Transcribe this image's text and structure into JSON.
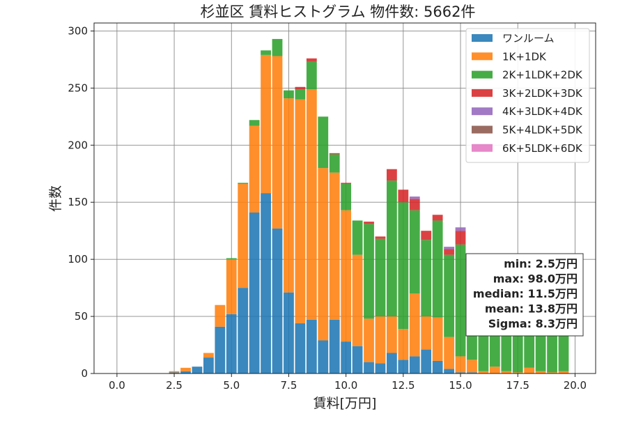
{
  "chart_data": {
    "type": "bar",
    "title": "杉並区 賃料ヒストグラム 物件数: 5662件",
    "xlabel": "賃料[万円]",
    "ylabel": "件数",
    "xlim": [
      -1.0,
      20.9
    ],
    "ylim": [
      0,
      307
    ],
    "xticks": [
      0.0,
      2.5,
      5.0,
      7.5,
      10.0,
      12.5,
      15.0,
      17.5,
      20.0
    ],
    "xtick_labels": [
      "0.0",
      "2.5",
      "5.0",
      "7.5",
      "10.0",
      "12.5",
      "15.0",
      "17.5",
      "20.0"
    ],
    "yticks": [
      0,
      50,
      100,
      150,
      200,
      250,
      300
    ],
    "ytick_labels": [
      "0",
      "50",
      "100",
      "150",
      "200",
      "250",
      "300"
    ],
    "grid": true,
    "legend_position": "top-right",
    "bin_width": 0.5,
    "x": [
      2.5,
      3.0,
      3.5,
      4.0,
      4.5,
      5.0,
      5.5,
      6.0,
      6.5,
      7.0,
      7.5,
      8.0,
      8.5,
      9.0,
      9.5,
      10.0,
      10.5,
      11.0,
      11.5,
      12.0,
      12.5,
      13.0,
      13.5,
      14.0,
      14.5,
      15.0,
      15.5,
      16.0,
      16.5,
      17.0,
      17.5,
      18.0,
      18.5,
      19.0,
      19.5
    ],
    "series": [
      {
        "name": "ワンルーム",
        "color": "#1f77b4",
        "values": [
          1,
          2,
          6,
          14,
          41,
          52,
          75,
          141,
          158,
          127,
          71,
          44,
          47,
          29,
          47,
          28,
          24,
          10,
          9,
          18,
          12,
          15,
          21,
          11,
          4,
          1,
          1,
          0,
          0,
          0,
          0,
          0,
          0,
          0,
          0
        ]
      },
      {
        "name": "1K+1DK",
        "color": "#ff7f0e",
        "values": [
          1,
          3,
          0,
          4,
          19,
          48,
          91,
          76,
          121,
          151,
          170,
          196,
          202,
          151,
          129,
          115,
          80,
          38,
          41,
          32,
          27,
          55,
          29,
          38,
          28,
          14,
          11,
          2,
          6,
          2,
          1,
          5,
          2,
          1,
          2
        ]
      },
      {
        "name": "2K+1LDK+2DK",
        "color": "#2ca02c",
        "values": [
          0,
          0,
          0,
          0,
          0,
          1,
          1,
          5,
          4,
          15,
          7,
          9,
          24,
          45,
          16,
          23,
          30,
          83,
          68,
          119,
          111,
          73,
          67,
          85,
          72,
          98,
          86,
          87,
          80,
          94,
          80,
          80,
          71,
          62,
          75
        ]
      },
      {
        "name": "3K+2LDK+3DK",
        "color": "#d62728",
        "values": [
          0,
          0,
          0,
          0,
          0,
          0,
          0,
          0,
          0,
          0,
          0,
          2,
          3,
          0,
          1,
          1,
          0,
          2,
          2,
          10,
          11,
          10,
          8,
          5,
          5,
          12,
          0,
          0,
          0,
          0,
          0,
          0,
          0,
          8,
          0
        ]
      },
      {
        "name": "4K+3LDK+4DK",
        "color": "#9467bd",
        "values": [
          0,
          0,
          0,
          0,
          0,
          0,
          0,
          0,
          0,
          0,
          0,
          0,
          0,
          0,
          0,
          0,
          0,
          0,
          0,
          0,
          0,
          2,
          0,
          0,
          2,
          3,
          0,
          0,
          0,
          0,
          0,
          0,
          0,
          0,
          0
        ]
      },
      {
        "name": "5K+4LDK+5DK",
        "color": "#8c564b",
        "values": [
          0,
          0,
          0,
          0,
          0,
          0,
          0,
          0,
          0,
          0,
          0,
          0,
          0,
          0,
          0,
          0,
          0,
          0,
          0,
          0,
          0,
          0,
          0,
          0,
          0,
          0,
          0,
          0,
          0,
          0,
          0,
          0,
          0,
          0,
          0
        ]
      },
      {
        "name": "6K+5LDK+6DK",
        "color": "#e377c2",
        "values": [
          0,
          0,
          0,
          0,
          0,
          0,
          0,
          0,
          0,
          0,
          0,
          0,
          0,
          0,
          0,
          0,
          0,
          0,
          0,
          0,
          0,
          0,
          0,
          0,
          0,
          0,
          0,
          0,
          0,
          0,
          0,
          0,
          0,
          0,
          0
        ]
      }
    ],
    "stats": {
      "lines": [
        "min: 2.5万円",
        "max: 98.0万円",
        "median: 11.5万円",
        "mean: 13.8万円",
        "Sigma: 8.3万円"
      ]
    }
  }
}
